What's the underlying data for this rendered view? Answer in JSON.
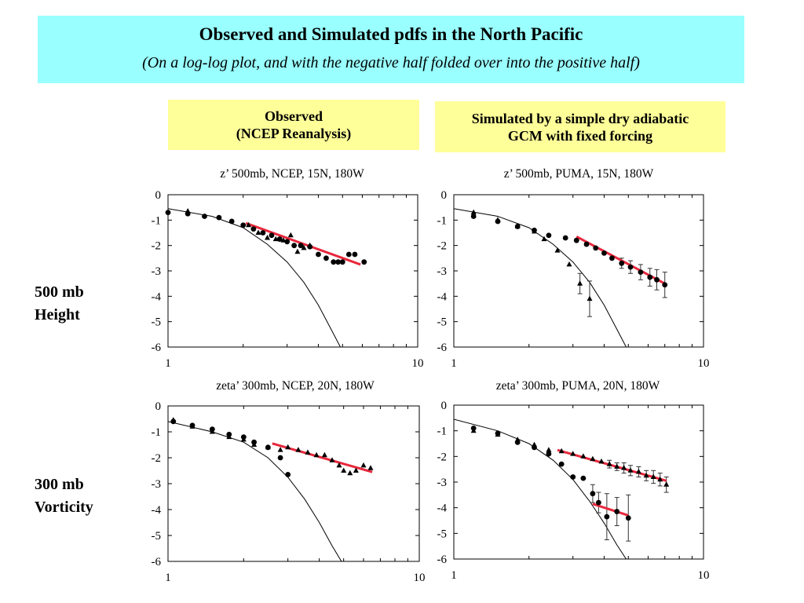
{
  "header": {
    "title": "Observed and Simulated pdfs in the North Pacific",
    "subtitle": "(On a log-log plot, and with the negative half folded over into the positive half)"
  },
  "columns": {
    "observed": [
      "Observed",
      "(NCEP Reanalysis)"
    ],
    "simulated": [
      "Simulated by a simple dry adiabatic",
      "GCM with fixed forcing"
    ]
  },
  "rows": {
    "height": [
      "500 mb",
      "Height"
    ],
    "vorticity": [
      "300 mb",
      "Vorticity"
    ]
  },
  "colors": {
    "fit": "#e8283c",
    "markers": "#000000",
    "curve": "#000000"
  },
  "chart_data": [
    {
      "type": "scatter",
      "title": "z’ 500mb, NCEP, 15N, 180W",
      "x_scale": "log",
      "xlim": [
        1,
        10
      ],
      "ylim": [
        -6,
        0
      ],
      "x_ticks": [
        "1",
        "10"
      ],
      "y_ticks": [
        "0",
        "-1",
        "-2",
        "-3",
        "-4",
        "-5",
        "-6"
      ],
      "grid": false,
      "circles": [
        [
          1.0,
          -0.7
        ],
        [
          1.2,
          -0.75
        ],
        [
          1.4,
          -0.85
        ],
        [
          1.6,
          -0.9
        ],
        [
          1.8,
          -1.05
        ],
        [
          2.0,
          -1.2
        ],
        [
          2.2,
          -1.35
        ],
        [
          2.4,
          -1.5
        ],
        [
          2.6,
          -1.6
        ],
        [
          2.8,
          -1.75
        ],
        [
          3.0,
          -1.85
        ],
        [
          3.2,
          -2.0
        ],
        [
          3.4,
          -2.0
        ],
        [
          3.7,
          -2.05
        ],
        [
          4.0,
          -2.35
        ],
        [
          4.3,
          -2.5
        ],
        [
          4.6,
          -2.65
        ],
        [
          4.8,
          -2.65
        ],
        [
          5.0,
          -2.65
        ],
        [
          5.3,
          -2.35
        ],
        [
          5.6,
          -2.35
        ],
        [
          6.1,
          -2.65
        ]
      ],
      "triangles": [
        [
          1.2,
          -0.65
        ],
        [
          2.1,
          -1.2
        ],
        [
          2.3,
          -1.5
        ],
        [
          2.5,
          -1.7
        ],
        [
          2.7,
          -1.75
        ],
        [
          2.9,
          -1.8
        ],
        [
          3.1,
          -1.6
        ],
        [
          3.3,
          -2.25
        ],
        [
          3.5,
          -2.1
        ],
        [
          3.7,
          -2.0
        ]
      ],
      "errorbars": [],
      "curve": {
        "name": "",
        "points": [
          [
            1,
            -0.55
          ],
          [
            1.5,
            -0.85
          ],
          [
            2,
            -1.3
          ],
          [
            2.5,
            -1.95
          ],
          [
            3,
            -2.65
          ],
          [
            3.5,
            -3.45
          ],
          [
            4,
            -4.35
          ],
          [
            4.5,
            -5.3
          ],
          [
            4.9,
            -6.0
          ]
        ]
      },
      "fit_lines": [
        {
          "x": [
            2.05,
            5.9
          ],
          "y": [
            -1.12,
            -2.75
          ]
        }
      ]
    },
    {
      "type": "scatter",
      "title": "z’ 500mb, PUMA, 15N, 180W",
      "x_scale": "log",
      "xlim": [
        1,
        10
      ],
      "ylim": [
        -6,
        0
      ],
      "x_ticks": [
        "1",
        "10"
      ],
      "y_ticks": [
        "0",
        "-1",
        "-2",
        "-3",
        "-4",
        "-5",
        "-6"
      ],
      "grid": false,
      "circles": [
        [
          1.2,
          -0.85
        ],
        [
          1.5,
          -1.05
        ],
        [
          1.8,
          -1.25
        ],
        [
          2.1,
          -1.4
        ],
        [
          2.4,
          -1.6
        ],
        [
          2.8,
          -1.7
        ],
        [
          3.1,
          -1.8
        ],
        [
          3.4,
          -1.95
        ],
        [
          3.7,
          -2.1
        ],
        [
          4.0,
          -2.3
        ],
        [
          4.3,
          -2.5
        ],
        [
          4.7,
          -2.7
        ],
        [
          5.1,
          -2.85
        ],
        [
          5.6,
          -3.05
        ],
        [
          6.1,
          -3.25
        ],
        [
          6.5,
          -3.35
        ],
        [
          7.0,
          -3.55
        ]
      ],
      "triangles": [
        [
          1.2,
          -0.7
        ],
        [
          1.5,
          -1.0
        ],
        [
          1.8,
          -1.25
        ],
        [
          2.1,
          -1.45
        ],
        [
          2.3,
          -1.75
        ],
        [
          2.6,
          -2.2
        ],
        [
          2.9,
          -2.75
        ],
        [
          3.2,
          -3.5
        ],
        [
          3.5,
          -4.1
        ]
      ],
      "errorbars": [
        [
          3.2,
          -3.5,
          0.4
        ],
        [
          3.5,
          -4.1,
          0.7
        ],
        [
          4.7,
          -2.7,
          0.2
        ],
        [
          5.1,
          -2.85,
          0.25
        ],
        [
          5.6,
          -3.05,
          0.3
        ],
        [
          6.1,
          -3.25,
          0.35
        ],
        [
          6.5,
          -3.35,
          0.4
        ],
        [
          7.0,
          -3.55,
          0.5
        ]
      ],
      "curve": {
        "name": "",
        "points": [
          [
            1,
            -0.55
          ],
          [
            1.5,
            -0.85
          ],
          [
            2,
            -1.3
          ],
          [
            2.5,
            -1.95
          ],
          [
            3,
            -2.65
          ],
          [
            3.5,
            -3.45
          ],
          [
            4,
            -4.35
          ],
          [
            4.5,
            -5.3
          ],
          [
            4.9,
            -6.0
          ]
        ]
      },
      "fit_lines": [
        {
          "x": [
            3.1,
            7.0
          ],
          "y": [
            -1.65,
            -3.5
          ]
        }
      ]
    },
    {
      "type": "scatter",
      "title": "zeta’ 300mb, NCEP,  20N, 180W",
      "x_scale": "log",
      "xlim": [
        1,
        10
      ],
      "ylim": [
        -6,
        0
      ],
      "x_ticks": [
        "1",
        "10"
      ],
      "y_ticks": [
        "0",
        "-1",
        "-2",
        "-3",
        "-4",
        "-5",
        "-6"
      ],
      "grid": false,
      "circles": [
        [
          1.05,
          -0.6
        ],
        [
          1.25,
          -0.75
        ],
        [
          1.5,
          -0.9
        ],
        [
          1.75,
          -1.1
        ],
        [
          2.0,
          -1.2
        ],
        [
          2.2,
          -1.4
        ],
        [
          2.5,
          -1.6
        ],
        [
          2.8,
          -2.0
        ],
        [
          3.0,
          -2.65
        ]
      ],
      "triangles": [
        [
          1.05,
          -0.55
        ],
        [
          1.25,
          -0.8
        ],
        [
          1.5,
          -1.0
        ],
        [
          1.75,
          -1.2
        ],
        [
          2.0,
          -1.3
        ],
        [
          2.2,
          -1.5
        ],
        [
          2.5,
          -1.6
        ],
        [
          2.8,
          -1.7
        ],
        [
          3.0,
          -1.6
        ],
        [
          3.3,
          -1.7
        ],
        [
          3.6,
          -1.8
        ],
        [
          3.9,
          -1.9
        ],
        [
          4.2,
          -1.9
        ],
        [
          4.5,
          -2.1
        ],
        [
          4.8,
          -2.3
        ],
        [
          5.0,
          -2.5
        ],
        [
          5.3,
          -2.6
        ],
        [
          5.6,
          -2.5
        ],
        [
          6.0,
          -2.3
        ],
        [
          6.4,
          -2.4
        ]
      ],
      "errorbars": [],
      "curve": {
        "name": "",
        "points": [
          [
            1,
            -0.6
          ],
          [
            1.5,
            -1.0
          ],
          [
            2,
            -1.4
          ],
          [
            2.5,
            -2.0
          ],
          [
            3,
            -2.75
          ],
          [
            3.5,
            -3.6
          ],
          [
            4,
            -4.5
          ],
          [
            4.5,
            -5.4
          ],
          [
            4.9,
            -6.0
          ]
        ]
      },
      "fit_lines": [
        {
          "x": [
            2.6,
            6.5
          ],
          "y": [
            -1.45,
            -2.55
          ]
        }
      ]
    },
    {
      "type": "scatter",
      "title": "zeta’ 300mb, PUMA,  20N, 180W",
      "x_scale": "log",
      "xlim": [
        1,
        10
      ],
      "ylim": [
        -6,
        0
      ],
      "x_ticks": [
        "1",
        "10"
      ],
      "y_ticks": [
        "0",
        "-1",
        "-2",
        "-3",
        "-4",
        "-5",
        "-6"
      ],
      "grid": false,
      "circles": [
        [
          1.2,
          -0.9
        ],
        [
          1.5,
          -1.1
        ],
        [
          1.8,
          -1.45
        ],
        [
          2.1,
          -1.65
        ],
        [
          2.4,
          -1.9
        ],
        [
          2.7,
          -2.3
        ],
        [
          3.0,
          -2.8
        ],
        [
          3.3,
          -2.85
        ],
        [
          3.6,
          -3.45
        ],
        [
          3.8,
          -3.8
        ],
        [
          4.1,
          -4.35
        ],
        [
          4.5,
          -4.15
        ],
        [
          5.0,
          -4.4
        ]
      ],
      "triangles": [
        [
          1.2,
          -1.0
        ],
        [
          1.5,
          -1.15
        ],
        [
          1.8,
          -1.35
        ],
        [
          2.1,
          -1.55
        ],
        [
          2.4,
          -1.75
        ],
        [
          2.7,
          -1.8
        ],
        [
          3.0,
          -1.9
        ],
        [
          3.3,
          -2.0
        ],
        [
          3.6,
          -2.1
        ],
        [
          3.9,
          -2.2
        ],
        [
          4.2,
          -2.3
        ],
        [
          4.5,
          -2.4
        ],
        [
          4.8,
          -2.45
        ],
        [
          5.1,
          -2.55
        ],
        [
          5.5,
          -2.6
        ],
        [
          5.9,
          -2.75
        ],
        [
          6.3,
          -2.8
        ],
        [
          6.7,
          -2.9
        ],
        [
          7.1,
          -3.1
        ]
      ],
      "errorbars": [
        [
          3.6,
          -3.45,
          0.35
        ],
        [
          3.8,
          -3.8,
          0.4
        ],
        [
          4.1,
          -4.35,
          0.9
        ],
        [
          4.5,
          -4.15,
          0.55
        ],
        [
          5.0,
          -4.4,
          0.9
        ],
        [
          4.2,
          -2.3,
          0.15
        ],
        [
          4.5,
          -2.4,
          0.15
        ],
        [
          4.8,
          -2.45,
          0.2
        ],
        [
          5.1,
          -2.55,
          0.2
        ],
        [
          5.5,
          -2.6,
          0.2
        ],
        [
          5.9,
          -2.75,
          0.2
        ],
        [
          6.3,
          -2.8,
          0.25
        ],
        [
          6.7,
          -2.9,
          0.25
        ],
        [
          7.1,
          -3.1,
          0.3
        ]
      ],
      "curve": {
        "name": "",
        "points": [
          [
            1,
            -0.55
          ],
          [
            1.5,
            -1.0
          ],
          [
            2,
            -1.5
          ],
          [
            2.5,
            -2.15
          ],
          [
            3,
            -2.9
          ],
          [
            3.5,
            -3.75
          ],
          [
            4,
            -4.6
          ],
          [
            4.5,
            -5.45
          ],
          [
            4.9,
            -6.0
          ]
        ]
      },
      "fit_lines": [
        {
          "x": [
            2.6,
            7.1
          ],
          "y": [
            -1.75,
            -2.95
          ]
        },
        {
          "x": [
            3.6,
            5.0
          ],
          "y": [
            -3.85,
            -4.3
          ]
        }
      ]
    }
  ]
}
